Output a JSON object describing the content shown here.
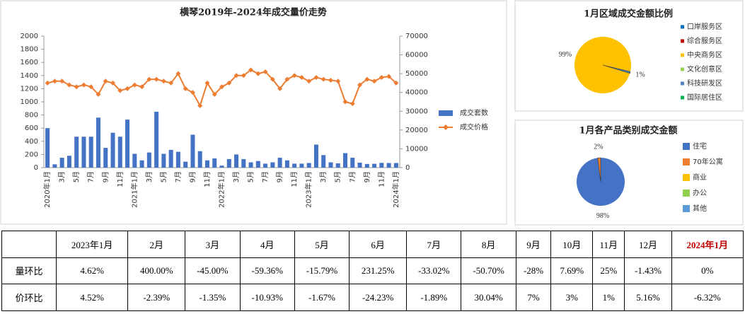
{
  "chart_data": [
    {
      "type": "combo",
      "title": "横琴2019年-2024年成交量价走势",
      "categories": [
        "2020年1月",
        null,
        "3月",
        null,
        "5月",
        null,
        "7月",
        null,
        "9月",
        null,
        "11月",
        null,
        "2021年1月",
        null,
        "3月",
        null,
        "5月",
        null,
        "7月",
        null,
        "9月",
        null,
        "11月",
        null,
        "2022年1月",
        null,
        "3月",
        null,
        "5月",
        null,
        "7月",
        null,
        "9月",
        null,
        "11月",
        null,
        "2023年1月",
        null,
        "3月",
        null,
        "5月",
        null,
        "7月",
        null,
        "9月",
        null,
        "11月",
        null,
        "2024年1月"
      ],
      "series": [
        {
          "name": "成交套数",
          "type": "bar",
          "color": "#4472c4",
          "values": [
            600,
            50,
            150,
            180,
            470,
            470,
            470,
            760,
            300,
            530,
            470,
            730,
            210,
            110,
            230,
            850,
            210,
            270,
            240,
            90,
            500,
            250,
            110,
            140,
            30,
            130,
            200,
            130,
            80,
            100,
            60,
            80,
            150,
            110,
            60,
            60,
            70,
            350,
            190,
            80,
            65,
            220,
            150,
            75,
            55,
            58,
            72,
            70,
            70
          ]
        },
        {
          "name": "成交价格",
          "type": "line",
          "axis": "y2",
          "color": "#ed7d31",
          "values": [
            45000,
            46000,
            46000,
            44000,
            43000,
            44000,
            43000,
            39000,
            46000,
            45000,
            41000,
            42000,
            44000,
            43000,
            47000,
            47000,
            46000,
            45000,
            50000,
            42000,
            40000,
            33000,
            45000,
            39000,
            43000,
            45000,
            49000,
            49000,
            52000,
            50000,
            51000,
            47000,
            42000,
            47000,
            49000,
            48000,
            46000,
            48000,
            47000,
            46500,
            46000,
            35000,
            34000,
            44000,
            47000,
            46000,
            48000,
            48500,
            45000
          ]
        }
      ],
      "ylim": [
        0,
        2000
      ],
      "yticks": [
        0,
        200,
        400,
        600,
        800,
        1000,
        1200,
        1400,
        1600,
        1800,
        2000
      ],
      "y2lim": [
        0,
        70000
      ],
      "y2ticks": [
        0,
        10000,
        20000,
        30000,
        40000,
        50000,
        60000,
        70000
      ],
      "legend": "right",
      "grid": false
    },
    {
      "type": "pie",
      "title": "1月区域成交金额比例",
      "categories": [
        "口岸服务区",
        "综合服务区",
        "中央商务区",
        "文化创意区",
        "科技研发区",
        "国际居住区"
      ],
      "colors": [
        "#0070c0",
        "#c00000",
        "#ffc000",
        "#92d050",
        "#4f81bd",
        "#00b050"
      ],
      "values": [
        0,
        0,
        99,
        0,
        1,
        0
      ],
      "value_labels": [
        null,
        null,
        "99%",
        null,
        "1%",
        null
      ],
      "legend": "right"
    },
    {
      "type": "pie",
      "title": "1月各产品类别成交金额",
      "categories": [
        "住宅",
        "70年公寓",
        "商业",
        "办公",
        "其他"
      ],
      "colors": [
        "#4472c4",
        "#ed7d31",
        "#ffc000",
        "#92d050",
        "#5b9bd5"
      ],
      "values": [
        98,
        2,
        0,
        0,
        0
      ],
      "value_labels": [
        "98%",
        "2%",
        null,
        null,
        null
      ],
      "legend": "right"
    }
  ],
  "table": {
    "header": [
      null,
      "2023年1月",
      "2月",
      "3月",
      "4月",
      "5月",
      "6月",
      "7月",
      "8月",
      "9月",
      "10月",
      "11月",
      "12月",
      "2024年1月"
    ],
    "rows": [
      [
        "量环比",
        "4.62%",
        "400.00%",
        "-45.00%",
        "-59.36%",
        "-15.79%",
        "231.25%",
        "-33.02%",
        "-50.70%",
        "-28%",
        "7.69%",
        "25%",
        "-1.43%",
        "0%"
      ],
      [
        "价环比",
        "4.52%",
        "-2.39%",
        "-1.35%",
        "-10.93%",
        "-1.67%",
        "-24.23%",
        "-1.89%",
        "30.04%",
        "7%",
        "3%",
        "1%",
        "5.16%",
        "-6.32%"
      ]
    ]
  }
}
